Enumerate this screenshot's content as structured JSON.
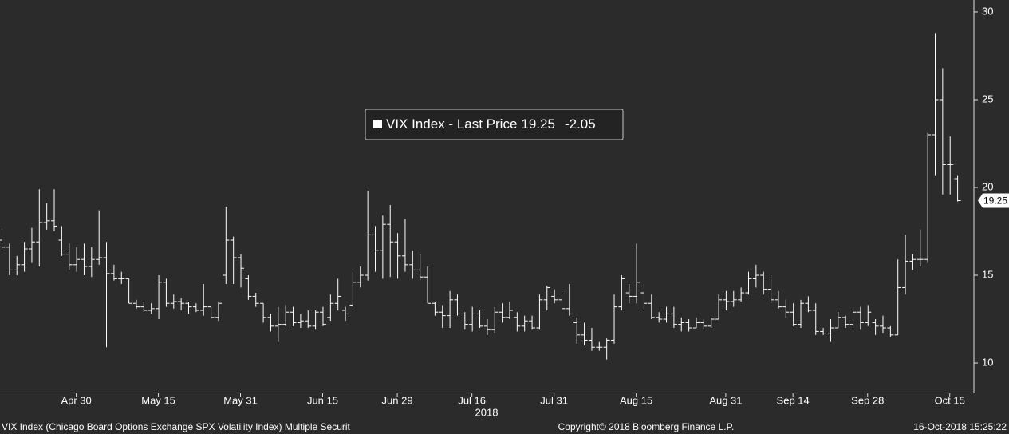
{
  "chart_data": {
    "type": "ohlc",
    "x": [
      "2018-04-16",
      "2018-04-17",
      "2018-04-18",
      "2018-04-19",
      "2018-04-20",
      "2018-04-23",
      "2018-04-24",
      "2018-04-25",
      "2018-04-26",
      "2018-04-27",
      "2018-04-30",
      "2018-05-01",
      "2018-05-02",
      "2018-05-03",
      "2018-05-04",
      "2018-05-07",
      "2018-05-08",
      "2018-05-09",
      "2018-05-10",
      "2018-05-11",
      "2018-05-14",
      "2018-05-15",
      "2018-05-16",
      "2018-05-17",
      "2018-05-18",
      "2018-05-21",
      "2018-05-22",
      "2018-05-23",
      "2018-05-24",
      "2018-05-25",
      "2018-05-29",
      "2018-05-30",
      "2018-05-31",
      "2018-06-01",
      "2018-06-04",
      "2018-06-05",
      "2018-06-06",
      "2018-06-07",
      "2018-06-08",
      "2018-06-11",
      "2018-06-12",
      "2018-06-13",
      "2018-06-14",
      "2018-06-15",
      "2018-06-18",
      "2018-06-19",
      "2018-06-20",
      "2018-06-21",
      "2018-06-22",
      "2018-06-25",
      "2018-06-26",
      "2018-06-27",
      "2018-06-28",
      "2018-06-29",
      "2018-07-02",
      "2018-07-03",
      "2018-07-05",
      "2018-07-06",
      "2018-07-09",
      "2018-07-10",
      "2018-07-11",
      "2018-07-12",
      "2018-07-13",
      "2018-07-16",
      "2018-07-17",
      "2018-07-18",
      "2018-07-19",
      "2018-07-20",
      "2018-07-23",
      "2018-07-24",
      "2018-07-25",
      "2018-07-26",
      "2018-07-27",
      "2018-07-30",
      "2018-07-31",
      "2018-08-01",
      "2018-08-02",
      "2018-08-03",
      "2018-08-06",
      "2018-08-07",
      "2018-08-08",
      "2018-08-09",
      "2018-08-10",
      "2018-08-13",
      "2018-08-14",
      "2018-08-15",
      "2018-08-16",
      "2018-08-17",
      "2018-08-20",
      "2018-08-21",
      "2018-08-22",
      "2018-08-23",
      "2018-08-24",
      "2018-08-27",
      "2018-08-28",
      "2018-08-29",
      "2018-08-30",
      "2018-08-31",
      "2018-09-04",
      "2018-09-05",
      "2018-09-06",
      "2018-09-07",
      "2018-09-10",
      "2018-09-11",
      "2018-09-12",
      "2018-09-13",
      "2018-09-14",
      "2018-09-17",
      "2018-09-18",
      "2018-09-19",
      "2018-09-20",
      "2018-09-21",
      "2018-09-24",
      "2018-09-25",
      "2018-09-26",
      "2018-09-27",
      "2018-09-28",
      "2018-10-01",
      "2018-10-02",
      "2018-10-03",
      "2018-10-04",
      "2018-10-05",
      "2018-10-08",
      "2018-10-09",
      "2018-10-10",
      "2018-10-11",
      "2018-10-12",
      "2018-10-15",
      "2018-10-16"
    ],
    "series": [
      {
        "name": "VIX Index - Last Price",
        "color": "#ffffff",
        "open": [
          17.0,
          16.6,
          15.3,
          15.6,
          16.5,
          16.9,
          18.0,
          18.1,
          17.0,
          16.2,
          15.6,
          15.9,
          15.5,
          15.9,
          16.0,
          15.1,
          14.8,
          14.8,
          13.4,
          13.2,
          13.0,
          13.1,
          14.6,
          13.4,
          13.5,
          13.4,
          13.2,
          13.0,
          13.2,
          12.6,
          15.0,
          17.0,
          16.0,
          14.8,
          13.8,
          13.4,
          12.6,
          12.1,
          12.2,
          12.9,
          12.3,
          12.4,
          12.1,
          12.9,
          12.6,
          13.4,
          13.0,
          13.3,
          14.6,
          15.0,
          17.3,
          16.4,
          17.9,
          16.9,
          16.1,
          15.6,
          15.3,
          14.9,
          13.4,
          12.9,
          12.7,
          13.6,
          12.8,
          12.2,
          12.8,
          12.1,
          11.9,
          12.9,
          12.6,
          12.6,
          12.1,
          12.4,
          12.0,
          13.6,
          13.8,
          13.6,
          13.1,
          12.3,
          11.6,
          11.3,
          10.9,
          10.9,
          11.3,
          13.2,
          14.0,
          13.8,
          14.0,
          13.4,
          12.6,
          12.5,
          12.8,
          12.2,
          12.3,
          12.0,
          12.3,
          12.1,
          12.5,
          13.6,
          13.5,
          13.6,
          14.0,
          14.8,
          15.0,
          14.2,
          13.6,
          13.2,
          12.9,
          12.2,
          13.4,
          13.0,
          11.8,
          11.7,
          12.0,
          12.6,
          12.2,
          12.9,
          12.3,
          12.3,
          12.1,
          12.0,
          11.6,
          14.3,
          15.8,
          15.9,
          15.9,
          23.0,
          25.0,
          21.3,
          20.5
        ],
        "high": [
          17.6,
          16.8,
          16.1,
          16.9,
          17.7,
          19.9,
          19.1,
          19.9,
          17.8,
          16.8,
          16.6,
          16.8,
          16.6,
          18.7,
          16.9,
          15.6,
          15.2,
          14.8,
          13.6,
          13.5,
          13.4,
          15.0,
          14.8,
          13.9,
          13.7,
          13.5,
          13.4,
          14.5,
          13.2,
          13.5,
          18.9,
          17.2,
          16.2,
          15.0,
          14.0,
          13.4,
          12.8,
          13.2,
          13.3,
          13.2,
          12.8,
          13.0,
          13.0,
          13.2,
          13.9,
          14.8,
          13.2,
          15.2,
          15.5,
          19.8,
          17.8,
          18.4,
          19.0,
          17.4,
          18.2,
          16.4,
          16.2,
          15.5,
          13.5,
          13.3,
          14.1,
          13.9,
          12.9,
          13.2,
          13.0,
          12.5,
          13.2,
          13.4,
          13.5,
          12.9,
          12.7,
          12.7,
          13.9,
          14.4,
          14.2,
          14.1,
          14.5,
          12.6,
          12.3,
          12.0,
          11.2,
          11.4,
          13.9,
          15.0,
          14.5,
          16.8,
          14.5,
          13.9,
          12.9,
          13.2,
          13.2,
          12.6,
          12.5,
          12.6,
          12.5,
          12.6,
          13.9,
          14.1,
          14.1,
          14.3,
          15.2,
          15.6,
          15.2,
          15.0,
          14.1,
          13.6,
          13.4,
          13.6,
          13.8,
          13.4,
          12.0,
          12.5,
          12.9,
          12.7,
          13.2,
          13.2,
          13.3,
          12.5,
          12.7,
          12.1,
          15.9,
          17.3,
          16.2,
          17.6,
          23.1,
          28.8,
          26.8,
          22.9,
          20.7
        ],
        "low": [
          16.3,
          15.0,
          15.0,
          15.2,
          15.7,
          15.5,
          17.6,
          17.5,
          16.1,
          15.3,
          15.2,
          15.0,
          14.9,
          15.6,
          10.9,
          14.7,
          14.5,
          13.4,
          13.1,
          12.9,
          12.8,
          12.5,
          13.2,
          13.1,
          13.0,
          12.8,
          12.9,
          12.7,
          12.5,
          12.4,
          14.5,
          14.5,
          14.3,
          13.6,
          13.2,
          12.3,
          11.8,
          11.2,
          12.1,
          12.1,
          12.0,
          12.0,
          11.9,
          12.1,
          12.4,
          13.0,
          12.4,
          13.2,
          14.3,
          14.7,
          15.2,
          14.8,
          14.9,
          14.8,
          15.2,
          14.8,
          14.7,
          13.4,
          12.7,
          12.0,
          12.0,
          12.7,
          11.9,
          11.8,
          12.0,
          11.6,
          11.7,
          12.3,
          12.5,
          11.8,
          11.8,
          11.9,
          11.9,
          13.0,
          13.4,
          12.5,
          12.7,
          11.1,
          11.0,
          10.7,
          10.7,
          10.2,
          11.1,
          13.0,
          13.4,
          13.4,
          13.0,
          12.5,
          12.3,
          12.3,
          12.0,
          11.8,
          11.8,
          12.0,
          11.9,
          12.0,
          12.5,
          13.0,
          13.2,
          13.5,
          13.9,
          14.3,
          13.9,
          13.4,
          13.1,
          12.6,
          12.1,
          12.0,
          12.9,
          11.6,
          11.6,
          11.2,
          12.0,
          12.0,
          12.0,
          11.9,
          12.1,
          11.6,
          11.7,
          11.5,
          11.6,
          13.9,
          15.3,
          15.5,
          15.7,
          20.7,
          19.6,
          19.6,
          19.2
        ],
        "close": [
          16.6,
          15.3,
          15.6,
          16.5,
          16.9,
          18.0,
          18.1,
          17.8,
          16.2,
          15.6,
          15.9,
          15.5,
          15.9,
          16.0,
          15.1,
          14.8,
          14.8,
          13.4,
          13.2,
          13.0,
          13.1,
          14.6,
          13.4,
          13.5,
          13.4,
          13.2,
          13.0,
          13.2,
          12.6,
          13.4,
          17.0,
          16.0,
          15.4,
          13.8,
          13.4,
          12.6,
          12.1,
          12.2,
          12.9,
          12.3,
          12.4,
          12.1,
          12.9,
          12.2,
          13.4,
          13.8,
          12.8,
          14.6,
          15.0,
          17.3,
          16.4,
          17.9,
          16.9,
          16.1,
          15.6,
          15.3,
          14.9,
          13.4,
          12.9,
          12.7,
          13.6,
          12.8,
          12.2,
          12.8,
          12.1,
          11.9,
          12.9,
          12.6,
          13.0,
          12.1,
          12.4,
          12.0,
          13.6,
          14.3,
          13.6,
          13.1,
          12.8,
          11.6,
          11.3,
          10.9,
          10.9,
          11.3,
          13.2,
          14.8,
          13.8,
          14.6,
          13.4,
          12.6,
          12.5,
          12.8,
          12.2,
          12.3,
          12.0,
          12.3,
          12.1,
          12.5,
          13.6,
          13.5,
          13.6,
          14.0,
          14.8,
          15.0,
          14.2,
          13.6,
          13.2,
          12.9,
          12.2,
          13.4,
          13.0,
          11.8,
          11.7,
          12.0,
          12.6,
          12.2,
          12.9,
          12.3,
          12.9,
          12.1,
          12.0,
          11.6,
          14.3,
          15.8,
          15.9,
          15.9,
          23.0,
          25.0,
          21.3,
          21.3,
          19.25
        ]
      }
    ],
    "last_change": -2.05,
    "ylim": [
      8.32,
      30.68
    ],
    "yticks": [
      10,
      15,
      20,
      25,
      30
    ],
    "xticks": [
      {
        "value": "2018-04-30",
        "label": "Apr 30"
      },
      {
        "value": "2018-05-15",
        "label": "May 15"
      },
      {
        "value": "2018-05-31",
        "label": "May 31"
      },
      {
        "value": "2018-06-15",
        "label": "Jun 15"
      },
      {
        "value": "2018-06-29",
        "label": "Jun 29"
      },
      {
        "value": "2018-07-16",
        "label": "Jul 16"
      },
      {
        "value": "2018-07-31",
        "label": "Jul 31"
      },
      {
        "value": "2018-08-15",
        "label": "Aug 15"
      },
      {
        "value": "2018-08-31",
        "label": "Aug 31"
      },
      {
        "value": "2018-09-14",
        "label": "Sep 14"
      },
      {
        "value": "2018-09-28",
        "label": "Sep 28"
      },
      {
        "value": "2018-10-15",
        "label": "Oct 15"
      }
    ],
    "xlabel": "2018",
    "footer_left": "VIX Index (Chicago Board Options Exchange SPX Volatility Index) Multiple Securit",
    "footer_center": "Copyright© 2018 Bloomberg Finance L.P.",
    "footer_right": "16-Oct-2018 15:25:22"
  }
}
